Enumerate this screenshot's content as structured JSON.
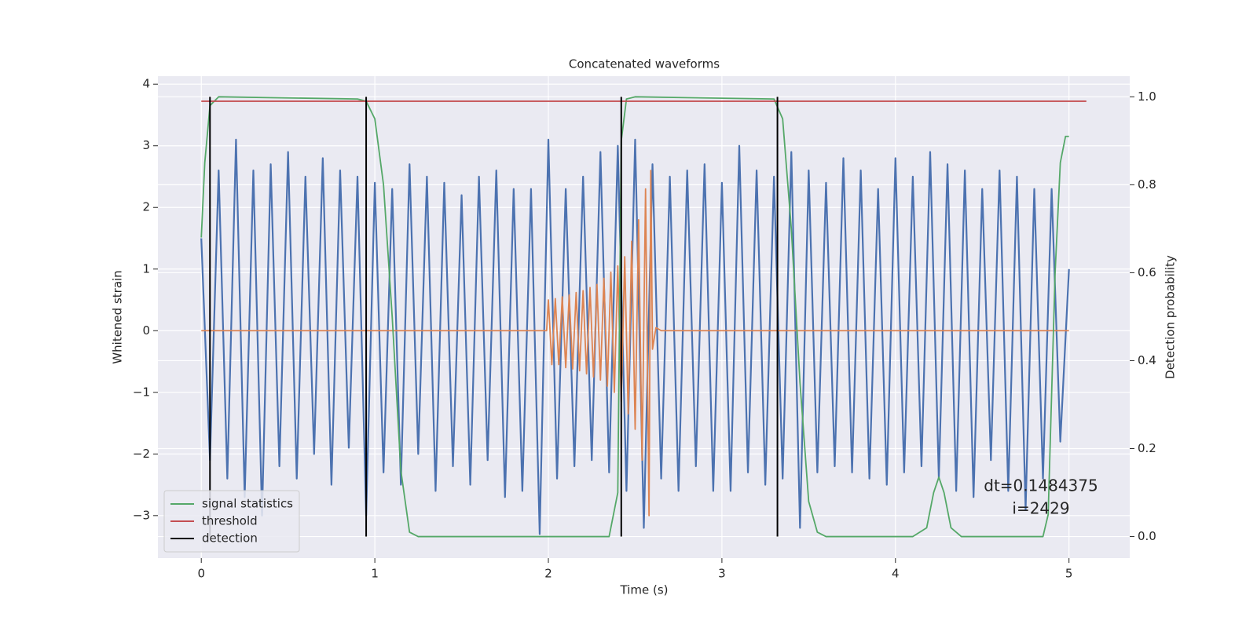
{
  "chart_data": {
    "type": "line",
    "title": "Concatenated waveforms",
    "x_label": "Time (s)",
    "y_label": "Whitened strain",
    "y2_label": "Detection probability",
    "xlim": [
      -0.25,
      5.35
    ],
    "ylim": [
      -3.69,
      4.13
    ],
    "y2lim": [
      -0.049,
      1.047
    ],
    "xticks": [
      0,
      1,
      2,
      3,
      4,
      5
    ],
    "yticks": [
      {
        "value": -3,
        "label": "−3"
      },
      {
        "value": -2,
        "label": "−2"
      },
      {
        "value": -1,
        "label": "−1"
      },
      0,
      1,
      2,
      3,
      4
    ],
    "y2ticks": [
      {
        "value": 0,
        "label": "0.0"
      },
      0.2,
      0.4,
      0.6,
      0.8,
      {
        "value": 1,
        "label": "1.0"
      }
    ],
    "grid": true,
    "legend": "lower left",
    "annotation": [
      "dt=0.1484375",
      "i=2429"
    ],
    "series": [
      {
        "color": "#4c72b0",
        "x": [
          0,
          0.05,
          0.1,
          0.15,
          0.2,
          0.25,
          0.3,
          0.35,
          0.4,
          0.45,
          0.5,
          0.55,
          0.6,
          0.65,
          0.7,
          0.75,
          0.8,
          0.85,
          0.9,
          0.95,
          1,
          1.05,
          1.1,
          1.15,
          1.2,
          1.25,
          1.3,
          1.35,
          1.4,
          1.45,
          1.5,
          1.55,
          1.6,
          1.65,
          1.7,
          1.75,
          1.8,
          1.85,
          1.9,
          1.95,
          2,
          2.05,
          2.1,
          2.15,
          2.2,
          2.25,
          2.3,
          2.35,
          2.4,
          2.45,
          2.5,
          2.55,
          2.6,
          2.65,
          2.7,
          2.75,
          2.8,
          2.85,
          2.9,
          2.95,
          3,
          3.05,
          3.1,
          3.15,
          3.2,
          3.25,
          3.3,
          3.35,
          3.4,
          3.45,
          3.5,
          3.55,
          3.6,
          3.65,
          3.7,
          3.75,
          3.8,
          3.85,
          3.9,
          3.95,
          4,
          4.05,
          4.1,
          4.15,
          4.2,
          4.25,
          4.3,
          4.35,
          4.4,
          4.45,
          4.5,
          4.55,
          4.6,
          4.65,
          4.7,
          4.75,
          4.8,
          4.85,
          4.9,
          4.95,
          5
        ],
        "values": [
          1.5,
          -2.1,
          2.6,
          -2.4,
          3.1,
          -2.7,
          2.6,
          -3.0,
          2.7,
          -2.2,
          2.9,
          -2.4,
          2.5,
          -2.0,
          2.8,
          -2.5,
          2.6,
          -1.9,
          2.5,
          -3.0,
          2.4,
          -2.3,
          2.3,
          -2.5,
          2.7,
          -2.0,
          2.5,
          -2.6,
          2.4,
          -2.2,
          2.2,
          -2.5,
          2.5,
          -2.1,
          2.6,
          -2.7,
          2.3,
          -2.6,
          2.3,
          -3.3,
          3.1,
          -2.4,
          2.3,
          -2.2,
          2.5,
          -2.1,
          2.9,
          -2.3,
          3.0,
          -2.6,
          3.1,
          -3.2,
          2.7,
          -2.4,
          2.5,
          -2.6,
          2.6,
          -2.2,
          2.7,
          -2.6,
          2.4,
          -2.6,
          3.0,
          -2.3,
          2.6,
          -2.5,
          2.5,
          -2.4,
          2.9,
          -3.2,
          2.6,
          -2.3,
          2.4,
          -2.2,
          2.8,
          -2.3,
          2.6,
          -2.4,
          2.3,
          -2.5,
          2.8,
          -2.3,
          2.5,
          -2.2,
          2.9,
          -2.4,
          2.7,
          -2.6,
          2.6,
          -2.7,
          2.3,
          -2.1,
          2.6,
          -2.6,
          2.5,
          -2.9,
          2.3,
          -2.4,
          2.3,
          -1.8,
          1.0
        ]
      },
      {
        "color": "#dd8452",
        "x": [
          0,
          1.99,
          2,
          2.02,
          2.04,
          2.06,
          2.08,
          2.1,
          2.12,
          2.14,
          2.16,
          2.18,
          2.2,
          2.22,
          2.24,
          2.26,
          2.28,
          2.3,
          2.32,
          2.34,
          2.36,
          2.38,
          2.4,
          2.42,
          2.44,
          2.46,
          2.48,
          2.5,
          2.52,
          2.54,
          2.56,
          2.58,
          2.59,
          2.6,
          2.62,
          2.65,
          5
        ],
        "values": [
          0,
          0,
          0.5,
          -0.55,
          0.52,
          -0.55,
          0.55,
          -0.6,
          0.58,
          -0.62,
          0.62,
          -0.65,
          0.65,
          -0.7,
          0.7,
          -0.75,
          0.75,
          -0.8,
          0.85,
          -0.9,
          0.95,
          -1.0,
          1.05,
          -1.15,
          1.2,
          -1.35,
          1.45,
          -1.6,
          1.8,
          -2.1,
          2.3,
          -3.0,
          2.6,
          -0.3,
          0.05,
          0,
          0
        ]
      },
      {
        "name": "signal statistics",
        "color": "#55a868",
        "axis": "y2",
        "x": [
          0,
          0.02,
          0.05,
          0.1,
          0.9,
          0.95,
          1,
          1.05,
          1.1,
          1.15,
          1.2,
          1.25,
          2.35,
          2.4,
          2.42,
          2.45,
          2.5,
          3.3,
          3.35,
          3.4,
          3.45,
          3.5,
          3.55,
          3.6,
          4.1,
          4.18,
          4.22,
          4.25,
          4.28,
          4.32,
          4.38,
          4.85,
          4.88,
          4.92,
          4.95,
          4.98,
          5
        ],
        "values": [
          0.68,
          0.85,
          0.98,
          1.0,
          0.995,
          0.99,
          0.95,
          0.8,
          0.5,
          0.15,
          0.01,
          0,
          0,
          0.1,
          0.9,
          0.995,
          1.0,
          0.995,
          0.95,
          0.7,
          0.35,
          0.08,
          0.01,
          0,
          0,
          0.02,
          0.1,
          0.135,
          0.1,
          0.02,
          0,
          0,
          0.05,
          0.6,
          0.85,
          0.91,
          0.91
        ]
      },
      {
        "name": "threshold",
        "color": "#c44e52",
        "axis": "y2",
        "x": [
          0,
          5.1
        ],
        "values": [
          0.99,
          0.99
        ]
      },
      {
        "name": "detection",
        "color": "#000000",
        "axis": "y2",
        "kind": "vlines",
        "x": [
          0.05,
          0.95,
          2.42,
          3.32
        ],
        "ymin": [
          0,
          0,
          0,
          0
        ],
        "ymax": [
          1,
          1,
          1,
          1
        ]
      }
    ]
  }
}
